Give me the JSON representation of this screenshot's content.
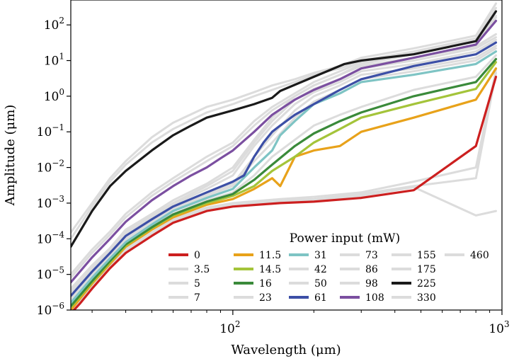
{
  "chart_data": {
    "type": "line",
    "title": "",
    "xlabel": "Wavelength (μm)",
    "ylabel": "Amplitude (μm)",
    "xscale": "log",
    "yscale": "log",
    "xlim": [
      25,
      1000
    ],
    "ylim": [
      1e-06,
      500
    ],
    "x_ticks": [
      {
        "value": 100,
        "label": "10",
        "exp": "2"
      },
      {
        "value": 1000,
        "label": "10",
        "exp": "3"
      }
    ],
    "y_ticks": [
      {
        "value": 1e-06,
        "label": "10",
        "exp": "−6"
      },
      {
        "value": 1e-05,
        "label": "10",
        "exp": "−5"
      },
      {
        "value": 0.0001,
        "label": "10",
        "exp": "−4"
      },
      {
        "value": 0.001,
        "label": "10",
        "exp": "−3"
      },
      {
        "value": 0.01,
        "label": "10",
        "exp": "−2"
      },
      {
        "value": 0.1,
        "label": "10",
        "exp": "−1"
      },
      {
        "value": 1,
        "label": "10",
        "exp": "0"
      },
      {
        "value": 10,
        "label": "10",
        "exp": "1"
      },
      {
        "value": 100,
        "label": "10",
        "exp": "2"
      }
    ],
    "legend_title": "Power input (mW)",
    "legend_position": "bottom-right",
    "series": [
      {
        "name": "0",
        "color": "#cc1f1f",
        "x": [
          25,
          27,
          30,
          35,
          40,
          50,
          60,
          80,
          100,
          150,
          200,
          300,
          470,
          800,
          950
        ],
        "y": [
          8e-07,
          1.5e-06,
          4e-06,
          1.5e-05,
          4e-05,
          0.00012,
          0.00028,
          0.0006,
          0.0008,
          0.001,
          0.0011,
          0.0014,
          0.0023,
          0.04,
          3.5
        ]
      },
      {
        "name": "3.5",
        "color": "#dcdcdc",
        "x": [
          25,
          27,
          30,
          35,
          40,
          50,
          60,
          80,
          100,
          150,
          200,
          300,
          470,
          800,
          950
        ],
        "y": [
          9e-07,
          1.7e-06,
          4.5e-06,
          1.7e-05,
          4.5e-05,
          0.00013,
          0.0003,
          0.00065,
          0.00085,
          0.0011,
          0.0012,
          0.0016,
          0.0028,
          0.00045,
          0.0006
        ]
      },
      {
        "name": "5",
        "color": "#dcdcdc",
        "x": [
          25,
          27,
          30,
          35,
          40,
          50,
          60,
          80,
          100,
          150,
          200,
          300,
          470,
          800,
          950
        ],
        "y": [
          9.5e-07,
          1.8e-06,
          4.8e-06,
          1.8e-05,
          5e-05,
          0.00014,
          0.00032,
          0.0007,
          0.0009,
          0.0012,
          0.0013,
          0.0018,
          0.003,
          0.005,
          4.5
        ]
      },
      {
        "name": "7",
        "color": "#dcdcdc",
        "x": [
          25,
          27,
          30,
          35,
          40,
          50,
          60,
          80,
          100,
          150,
          200,
          300,
          470,
          800,
          950
        ],
        "y": [
          1e-06,
          2e-06,
          5e-06,
          2e-05,
          5.5e-05,
          0.00015,
          0.00035,
          0.00075,
          0.001,
          0.0013,
          0.0015,
          0.002,
          0.004,
          0.01,
          5.5
        ]
      },
      {
        "name": "11.5",
        "color": "#e8a21a",
        "x": [
          25,
          30,
          35,
          40,
          50,
          60,
          80,
          100,
          120,
          140,
          150,
          170,
          200,
          250,
          300,
          470,
          800,
          950
        ],
        "y": [
          1e-06,
          5.5e-06,
          2e-05,
          6e-05,
          0.00018,
          0.0004,
          0.0009,
          0.0013,
          0.0025,
          0.005,
          0.003,
          0.02,
          0.03,
          0.04,
          0.1,
          0.25,
          0.8,
          6
        ]
      },
      {
        "name": "14.5",
        "color": "#a4c43a",
        "x": [
          25,
          30,
          35,
          40,
          50,
          60,
          80,
          100,
          120,
          140,
          170,
          200,
          250,
          300,
          470,
          800,
          950
        ],
        "y": [
          1.2e-06,
          6e-06,
          2.2e-05,
          6.5e-05,
          0.0002,
          0.00045,
          0.001,
          0.0016,
          0.003,
          0.008,
          0.02,
          0.05,
          0.12,
          0.25,
          0.6,
          1.6,
          9
        ]
      },
      {
        "name": "16",
        "color": "#3a8a3a",
        "x": [
          25,
          30,
          35,
          40,
          50,
          60,
          80,
          100,
          120,
          140,
          170,
          200,
          250,
          300,
          470,
          800,
          950
        ],
        "y": [
          1.3e-06,
          6.5e-06,
          2.4e-05,
          7e-05,
          0.00021,
          0.00048,
          0.0011,
          0.0018,
          0.0045,
          0.012,
          0.04,
          0.09,
          0.2,
          0.35,
          1.0,
          2.5,
          11
        ]
      },
      {
        "name": "23",
        "color": "#dcdcdc",
        "x": [
          25,
          30,
          35,
          40,
          50,
          60,
          80,
          100,
          120,
          140,
          170,
          200,
          250,
          300,
          470,
          800,
          950
        ],
        "y": [
          1.4e-06,
          7e-06,
          2.6e-05,
          7.5e-05,
          0.00023,
          0.0005,
          0.0012,
          0.002,
          0.006,
          0.02,
          0.06,
          0.15,
          0.3,
          0.5,
          1.5,
          3.5,
          14
        ]
      },
      {
        "name": "31",
        "color": "#7ec4c4",
        "x": [
          25,
          30,
          35,
          40,
          50,
          60,
          80,
          100,
          120,
          140,
          150,
          170,
          200,
          250,
          300,
          470,
          800,
          950
        ],
        "y": [
          1.6e-06,
          8e-06,
          2.8e-05,
          8e-05,
          0.00025,
          0.0006,
          0.0014,
          0.0025,
          0.01,
          0.03,
          0.08,
          0.2,
          0.6,
          1.2,
          2.5,
          4,
          8,
          18
        ]
      },
      {
        "name": "42",
        "color": "#dcdcdc",
        "x": [
          25,
          30,
          35,
          40,
          50,
          60,
          80,
          100,
          120,
          140,
          170,
          200,
          250,
          300,
          470,
          800,
          950
        ],
        "y": [
          1.8e-06,
          9e-06,
          3e-05,
          9e-05,
          0.00028,
          0.00065,
          0.0016,
          0.003,
          0.015,
          0.05,
          0.25,
          0.7,
          1.5,
          3,
          5,
          10,
          22
        ]
      },
      {
        "name": "50",
        "color": "#dcdcdc",
        "x": [
          25,
          30,
          35,
          40,
          50,
          60,
          80,
          100,
          120,
          140,
          170,
          200,
          250,
          300,
          470,
          800,
          950
        ],
        "y": [
          2e-06,
          1e-05,
          3.3e-05,
          0.0001,
          0.0003,
          0.0007,
          0.0018,
          0.0035,
          0.02,
          0.08,
          0.4,
          1,
          2,
          4,
          6,
          12,
          26
        ]
      },
      {
        "name": "61",
        "color": "#3c4fa6",
        "x": [
          25,
          30,
          35,
          40,
          50,
          60,
          80,
          100,
          110,
          120,
          130,
          140,
          150,
          170,
          200,
          250,
          300,
          470,
          800,
          950
        ],
        "y": [
          2.5e-06,
          1.2e-05,
          4e-05,
          0.00012,
          0.00035,
          0.0008,
          0.002,
          0.004,
          0.006,
          0.02,
          0.05,
          0.1,
          0.15,
          0.3,
          0.6,
          1.5,
          3,
          7,
          15,
          32
        ]
      },
      {
        "name": "73",
        "color": "#dcdcdc",
        "x": [
          25,
          30,
          35,
          40,
          50,
          60,
          80,
          100,
          120,
          140,
          170,
          200,
          250,
          300,
          470,
          800,
          950
        ],
        "y": [
          3e-06,
          1.4e-05,
          4.5e-05,
          0.00014,
          0.0004,
          0.0009,
          0.0025,
          0.006,
          0.04,
          0.15,
          0.6,
          1.3,
          2.5,
          5,
          8,
          18,
          38
        ]
      },
      {
        "name": "86",
        "color": "#dcdcdc",
        "x": [
          25,
          30,
          35,
          40,
          50,
          60,
          80,
          100,
          120,
          140,
          170,
          200,
          250,
          300,
          470,
          800,
          950
        ],
        "y": [
          3.5e-06,
          1.6e-05,
          5e-05,
          0.00016,
          0.00045,
          0.001,
          0.003,
          0.008,
          0.05,
          0.2,
          0.8,
          1.6,
          3,
          6,
          10,
          22,
          45
        ]
      },
      {
        "name": "98",
        "color": "#dcdcdc",
        "x": [
          25,
          30,
          35,
          40,
          50,
          60,
          80,
          100,
          120,
          140,
          170,
          200,
          250,
          300,
          470,
          800,
          950
        ],
        "y": [
          4e-06,
          1.8e-05,
          5.5e-05,
          0.00018,
          0.0005,
          0.0012,
          0.0035,
          0.01,
          0.06,
          0.25,
          1,
          2,
          4,
          7,
          12,
          25,
          55
        ]
      },
      {
        "name": "108",
        "color": "#7b4fa0",
        "x": [
          25,
          30,
          35,
          40,
          50,
          60,
          70,
          80,
          90,
          100,
          120,
          140,
          170,
          200,
          250,
          300,
          470,
          800,
          950
        ],
        "y": [
          6e-06,
          3e-05,
          0.0001,
          0.0003,
          0.0012,
          0.003,
          0.006,
          0.01,
          0.018,
          0.03,
          0.1,
          0.3,
          0.8,
          1.5,
          3,
          6,
          12,
          28,
          130
        ]
      },
      {
        "name": "155",
        "color": "#dcdcdc",
        "x": [
          25,
          30,
          35,
          40,
          50,
          60,
          80,
          100,
          120,
          140,
          170,
          200,
          250,
          300,
          470,
          800,
          950
        ],
        "y": [
          8e-06,
          4e-05,
          0.00013,
          0.0004,
          0.0016,
          0.004,
          0.015,
          0.04,
          0.15,
          0.4,
          1,
          2,
          4,
          8,
          15,
          35,
          160
        ]
      },
      {
        "name": "175",
        "color": "#dcdcdc",
        "x": [
          25,
          30,
          35,
          40,
          50,
          60,
          80,
          100,
          120,
          140,
          170,
          200,
          250,
          300,
          470,
          800,
          950
        ],
        "y": [
          1e-05,
          5e-05,
          0.00016,
          0.0005,
          0.002,
          0.005,
          0.02,
          0.05,
          0.2,
          0.5,
          1.2,
          2.5,
          5,
          9,
          17,
          38,
          180
        ]
      },
      {
        "name": "225",
        "color": "#1a1a1a",
        "x": [
          25,
          30,
          35,
          40,
          50,
          60,
          70,
          80,
          100,
          120,
          140,
          150,
          200,
          260,
          300,
          470,
          800,
          950
        ],
        "y": [
          6e-05,
          0.0006,
          0.003,
          0.008,
          0.03,
          0.08,
          0.15,
          0.25,
          0.4,
          0.6,
          0.9,
          1.4,
          3.5,
          8,
          10,
          15,
          35,
          240
        ]
      },
      {
        "name": "330",
        "color": "#dcdcdc",
        "x": [
          25,
          30,
          35,
          40,
          50,
          60,
          80,
          100,
          120,
          140,
          170,
          200,
          250,
          300,
          470,
          800,
          950
        ],
        "y": [
          0.0001,
          0.0008,
          0.004,
          0.012,
          0.05,
          0.12,
          0.35,
          0.6,
          1,
          1.5,
          2.5,
          4,
          6,
          10,
          18,
          42,
          300
        ]
      },
      {
        "name": "460",
        "color": "#dcdcdc",
        "x": [
          25,
          30,
          35,
          40,
          50,
          60,
          80,
          100,
          120,
          140,
          170,
          200,
          250,
          300,
          470,
          800,
          950
        ],
        "y": [
          0.00015,
          0.001,
          0.005,
          0.015,
          0.07,
          0.18,
          0.5,
          0.8,
          1.3,
          2,
          3,
          4.5,
          7,
          12,
          22,
          50,
          400
        ]
      }
    ]
  }
}
